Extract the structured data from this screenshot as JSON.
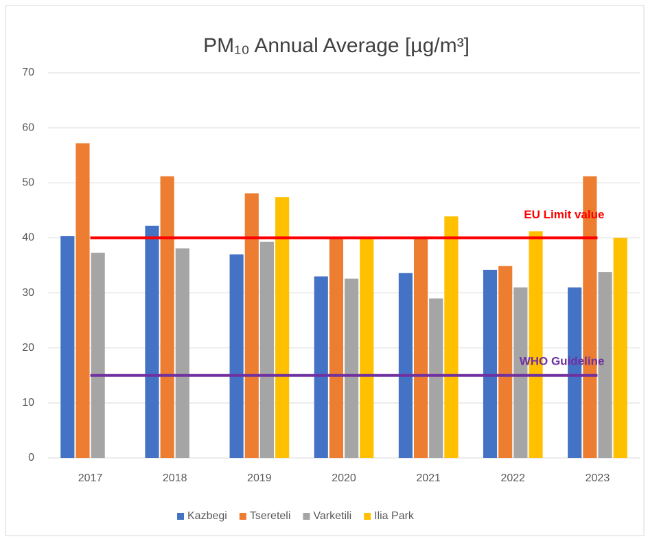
{
  "chart_data": {
    "type": "bar",
    "title": "PM₁₀ Annual Average [µg/m³]",
    "categories": [
      "2017",
      "2018",
      "2019",
      "2020",
      "2021",
      "2022",
      "2023"
    ],
    "series": [
      {
        "name": "Kazbegi",
        "color": "#4472c4",
        "values": [
          40.3,
          42.2,
          37,
          33,
          33.6,
          34.2,
          31
        ]
      },
      {
        "name": "Tsereteli",
        "color": "#ed7d31",
        "values": [
          57.2,
          51.2,
          48.1,
          40,
          40,
          34.9,
          51.2
        ]
      },
      {
        "name": "Varketili",
        "color": "#a5a5a5",
        "values": [
          37.3,
          38.1,
          39.3,
          32.6,
          29,
          31,
          33.8
        ]
      },
      {
        "name": "Ilia Park",
        "color": "#ffc000",
        "values": [
          null,
          null,
          47.4,
          40,
          43.9,
          41.2,
          40
        ]
      }
    ],
    "reference_lines": [
      {
        "label": "EU Limit value",
        "value": 40,
        "color": "#ff0000"
      },
      {
        "label": "WHO Guideline",
        "value": 15,
        "color": "#7030a0"
      }
    ],
    "ylim": [
      0,
      70
    ],
    "yticks": [
      0,
      10,
      20,
      30,
      40,
      50,
      60,
      70
    ],
    "grid": true,
    "legend": "bottom"
  }
}
